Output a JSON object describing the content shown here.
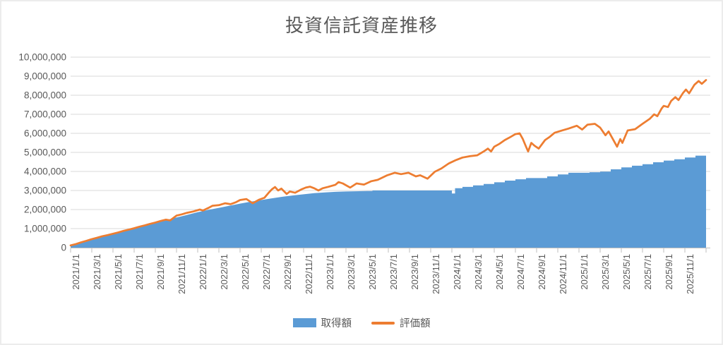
{
  "chart_data": {
    "type": "area",
    "title": "投資信託資産推移",
    "legend": {
      "position": "bottom",
      "items": [
        {
          "label": "取得額",
          "color": "#5B9BD5",
          "marker": "area-swatch"
        },
        {
          "label": "評価額",
          "color": "#ED7D31",
          "marker": "line-swatch"
        }
      ]
    },
    "x_axis": {
      "unit": "date",
      "start": "2021/1/1",
      "end": "2025/12/31",
      "months_span": 60,
      "tick_interval_months": 2,
      "labels": [
        "2021/1/1",
        "2021/3/1",
        "2021/5/1",
        "2021/7/1",
        "2021/9/1",
        "2021/11/1",
        "2022/1/1",
        "2022/3/1",
        "2022/5/1",
        "2022/7/1",
        "2022/9/1",
        "2022/11/1",
        "2023/1/1",
        "2023/3/1",
        "2023/5/1",
        "2023/7/1",
        "2023/9/1",
        "2023/11/1",
        "2024/1/1",
        "2024/3/1",
        "2024/5/1",
        "2024/7/1",
        "2024/9/1",
        "2024/11/1",
        "2025/1/1",
        "2025/3/1",
        "2025/5/1",
        "2025/7/1",
        "2025/9/1",
        "2025/11/1"
      ]
    },
    "y_axis": {
      "min": 0,
      "max": 10000000,
      "step": 1000000,
      "tick_labels": [
        "0",
        "1,000,000",
        "2,000,000",
        "3,000,000",
        "4,000,000",
        "5,000,000",
        "6,000,000",
        "7,000,000",
        "8,000,000",
        "9,000,000",
        "10,000,000"
      ]
    },
    "grid": {
      "horizontal": true,
      "color": "#D9D9D9"
    },
    "colors": {
      "axis": "#BFBFBF",
      "text": "#595959",
      "background": "#FFFFFF"
    },
    "series": [
      {
        "name": "取得額",
        "type": "area",
        "color": "#5B9BD5",
        "points_month_value": [
          [
            0,
            100000
          ],
          [
            1,
            260000
          ],
          [
            2,
            420000
          ],
          [
            3,
            570000
          ],
          [
            4,
            710000
          ],
          [
            5,
            860000
          ],
          [
            6,
            1000000
          ],
          [
            7,
            1150000
          ],
          [
            8,
            1290000
          ],
          [
            9,
            1440000
          ],
          [
            10,
            1580000
          ],
          [
            11,
            1720000
          ],
          [
            12,
            1860000
          ],
          [
            13,
            1980000
          ],
          [
            14,
            2090000
          ],
          [
            15,
            2200000
          ],
          [
            16,
            2310000
          ],
          [
            17,
            2410000
          ],
          [
            18,
            2500000
          ],
          [
            19,
            2590000
          ],
          [
            20,
            2670000
          ],
          [
            21,
            2740000
          ],
          [
            22,
            2800000
          ],
          [
            23,
            2860000
          ],
          [
            24,
            2900000
          ],
          [
            25,
            2930000
          ],
          [
            26,
            2950000
          ],
          [
            28,
            2970000
          ],
          [
            28.5,
            2970000
          ],
          [
            28.5,
            3000000
          ],
          [
            36,
            3000000
          ],
          [
            36,
            2840000
          ],
          [
            36.3,
            2840000
          ],
          [
            36.3,
            3120000
          ],
          [
            37,
            3120000
          ],
          [
            37,
            3190000
          ],
          [
            38,
            3190000
          ],
          [
            38,
            3270000
          ],
          [
            39,
            3270000
          ],
          [
            39,
            3340000
          ],
          [
            40,
            3340000
          ],
          [
            40,
            3430000
          ],
          [
            41,
            3430000
          ],
          [
            41,
            3520000
          ],
          [
            42,
            3520000
          ],
          [
            42,
            3590000
          ],
          [
            43,
            3590000
          ],
          [
            43,
            3650000
          ],
          [
            45,
            3650000
          ],
          [
            45,
            3740000
          ],
          [
            46,
            3740000
          ],
          [
            46,
            3840000
          ],
          [
            47,
            3840000
          ],
          [
            47,
            3930000
          ],
          [
            49,
            3930000
          ],
          [
            49,
            3960000
          ],
          [
            50,
            3960000
          ],
          [
            50,
            3990000
          ],
          [
            51,
            3990000
          ],
          [
            51,
            4110000
          ],
          [
            52,
            4110000
          ],
          [
            52,
            4210000
          ],
          [
            53,
            4210000
          ],
          [
            53,
            4300000
          ],
          [
            54,
            4300000
          ],
          [
            54,
            4380000
          ],
          [
            55,
            4380000
          ],
          [
            55,
            4480000
          ],
          [
            56,
            4480000
          ],
          [
            56,
            4570000
          ],
          [
            57,
            4570000
          ],
          [
            57,
            4640000
          ],
          [
            58,
            4640000
          ],
          [
            58,
            4730000
          ],
          [
            59,
            4730000
          ],
          [
            59,
            4830000
          ],
          [
            60,
            4830000
          ]
        ]
      },
      {
        "name": "評価額",
        "type": "line",
        "color": "#ED7D31",
        "stroke_width": 2.75,
        "points_month_value": [
          [
            0,
            120000
          ],
          [
            0.5,
            190000
          ],
          [
            1,
            280000
          ],
          [
            1.5,
            360000
          ],
          [
            2,
            450000
          ],
          [
            2.5,
            520000
          ],
          [
            3,
            600000
          ],
          [
            3.5,
            660000
          ],
          [
            4,
            730000
          ],
          [
            4.5,
            800000
          ],
          [
            5,
            880000
          ],
          [
            5.5,
            950000
          ],
          [
            6,
            1020000
          ],
          [
            6.5,
            1100000
          ],
          [
            7,
            1170000
          ],
          [
            7.5,
            1250000
          ],
          [
            8,
            1320000
          ],
          [
            8.5,
            1400000
          ],
          [
            9,
            1470000
          ],
          [
            9.4,
            1430000
          ],
          [
            10,
            1680000
          ],
          [
            10.5,
            1750000
          ],
          [
            11,
            1830000
          ],
          [
            11.6,
            1900000
          ],
          [
            12.2,
            2000000
          ],
          [
            12.5,
            1950000
          ],
          [
            13,
            2080000
          ],
          [
            13.4,
            2200000
          ],
          [
            14,
            2230000
          ],
          [
            14.6,
            2330000
          ],
          [
            15.1,
            2280000
          ],
          [
            15.6,
            2380000
          ],
          [
            16,
            2500000
          ],
          [
            16.6,
            2550000
          ],
          [
            17.2,
            2330000
          ],
          [
            17.8,
            2520000
          ],
          [
            18.3,
            2620000
          ],
          [
            18.7,
            2880000
          ],
          [
            19,
            3060000
          ],
          [
            19.3,
            3180000
          ],
          [
            19.6,
            3000000
          ],
          [
            19.9,
            3100000
          ],
          [
            20.4,
            2820000
          ],
          [
            20.7,
            2950000
          ],
          [
            21.2,
            2880000
          ],
          [
            21.8,
            3060000
          ],
          [
            22.2,
            3150000
          ],
          [
            22.6,
            3200000
          ],
          [
            23,
            3120000
          ],
          [
            23.4,
            3000000
          ],
          [
            23.8,
            3120000
          ],
          [
            24.3,
            3190000
          ],
          [
            25,
            3300000
          ],
          [
            25.3,
            3440000
          ],
          [
            25.7,
            3370000
          ],
          [
            26.4,
            3150000
          ],
          [
            27,
            3370000
          ],
          [
            27.7,
            3310000
          ],
          [
            28.4,
            3490000
          ],
          [
            29,
            3560000
          ],
          [
            29.9,
            3800000
          ],
          [
            30.6,
            3930000
          ],
          [
            31.2,
            3860000
          ],
          [
            31.9,
            3930000
          ],
          [
            32.6,
            3740000
          ],
          [
            33,
            3800000
          ],
          [
            33.7,
            3620000
          ],
          [
            34.4,
            3990000
          ],
          [
            35,
            4150000
          ],
          [
            35.7,
            4420000
          ],
          [
            36.4,
            4600000
          ],
          [
            37,
            4730000
          ],
          [
            37.7,
            4800000
          ],
          [
            38.4,
            4850000
          ],
          [
            39,
            5050000
          ],
          [
            39.4,
            5200000
          ],
          [
            39.7,
            5050000
          ],
          [
            40,
            5300000
          ],
          [
            40.5,
            5450000
          ],
          [
            41,
            5650000
          ],
          [
            41.5,
            5800000
          ],
          [
            42,
            5960000
          ],
          [
            42.4,
            6000000
          ],
          [
            42.7,
            5700000
          ],
          [
            43,
            5300000
          ],
          [
            43.2,
            5050000
          ],
          [
            43.5,
            5500000
          ],
          [
            43.8,
            5350000
          ],
          [
            44.2,
            5200000
          ],
          [
            44.8,
            5650000
          ],
          [
            45.2,
            5800000
          ],
          [
            45.7,
            6030000
          ],
          [
            46.4,
            6150000
          ],
          [
            47,
            6250000
          ],
          [
            47.8,
            6400000
          ],
          [
            48.3,
            6200000
          ],
          [
            48.8,
            6450000
          ],
          [
            49.5,
            6500000
          ],
          [
            50,
            6300000
          ],
          [
            50.5,
            5900000
          ],
          [
            50.8,
            6100000
          ],
          [
            51.3,
            5600000
          ],
          [
            51.6,
            5300000
          ],
          [
            51.9,
            5700000
          ],
          [
            52.1,
            5500000
          ],
          [
            52.6,
            6150000
          ],
          [
            53.3,
            6220000
          ],
          [
            54,
            6500000
          ],
          [
            54.7,
            6770000
          ],
          [
            55.1,
            7000000
          ],
          [
            55.4,
            6900000
          ],
          [
            55.8,
            7300000
          ],
          [
            56,
            7440000
          ],
          [
            56.4,
            7380000
          ],
          [
            56.7,
            7700000
          ],
          [
            57.1,
            7900000
          ],
          [
            57.4,
            7750000
          ],
          [
            57.8,
            8100000
          ],
          [
            58.1,
            8300000
          ],
          [
            58.4,
            8100000
          ],
          [
            58.9,
            8550000
          ],
          [
            59.3,
            8750000
          ],
          [
            59.6,
            8600000
          ],
          [
            60,
            8800000
          ]
        ]
      }
    ]
  }
}
